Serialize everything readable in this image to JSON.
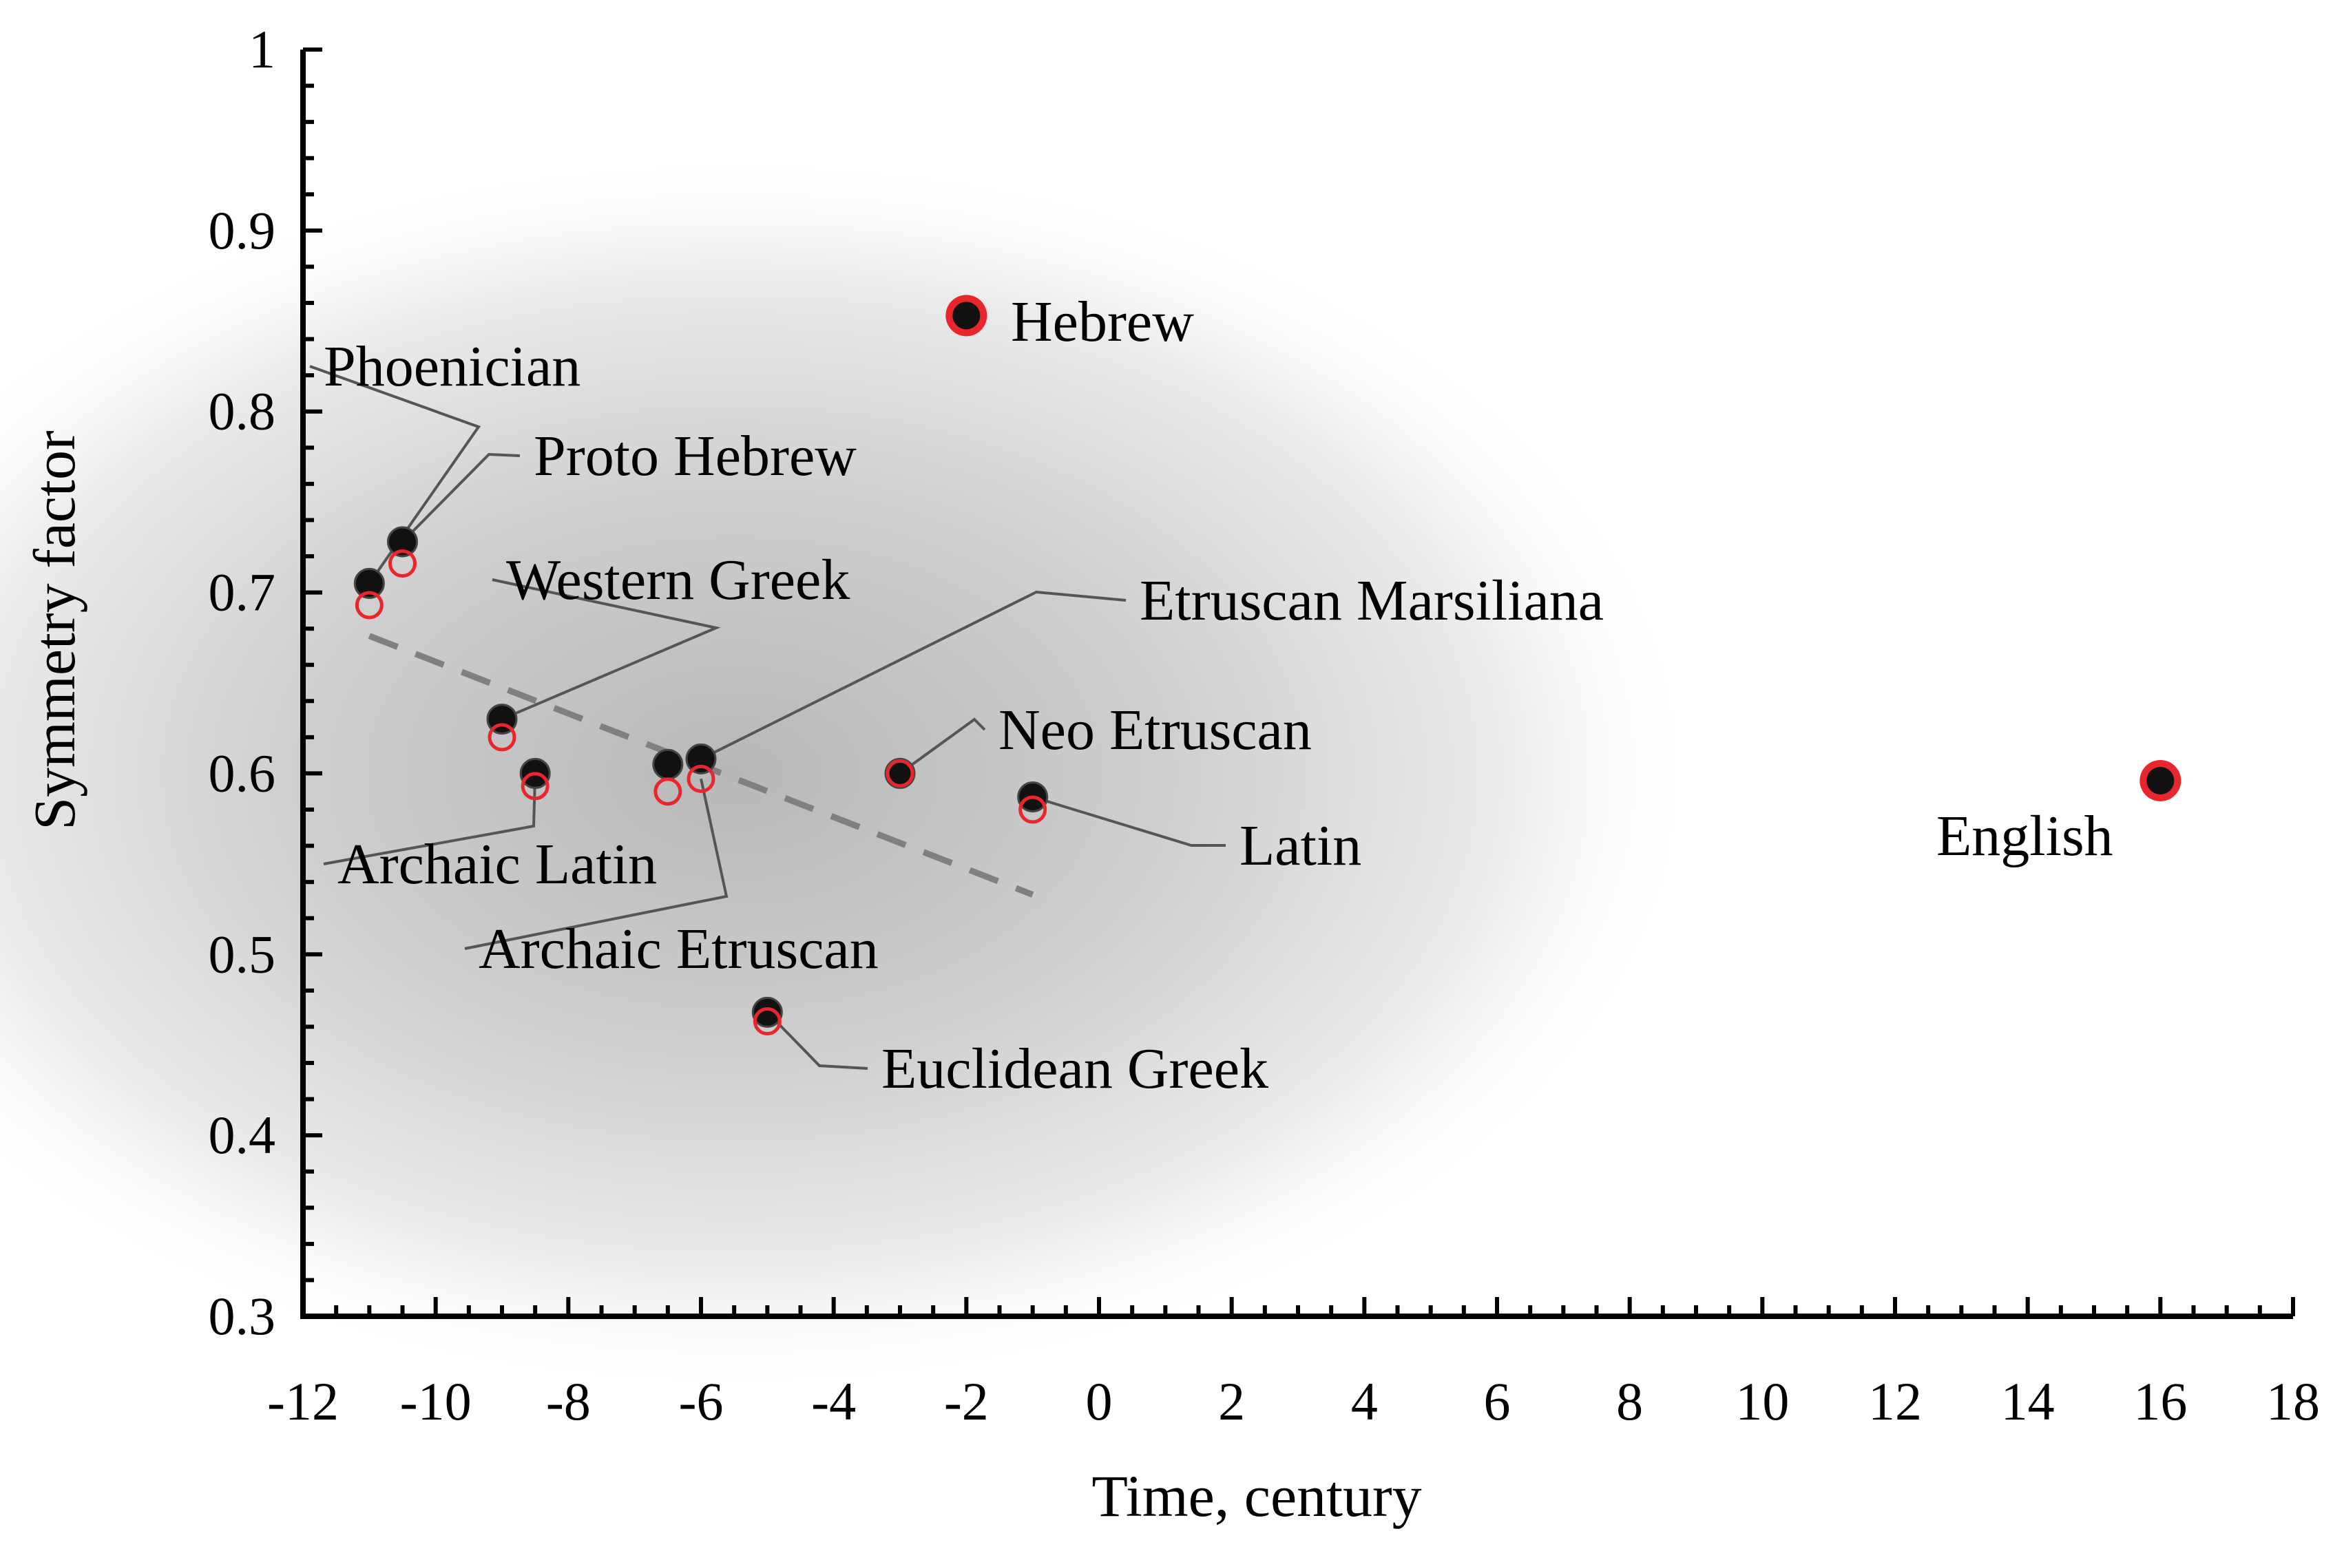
{
  "chart_data": {
    "type": "scatter",
    "title": "",
    "xlabel": "Time, century",
    "ylabel": "Symmetry factor",
    "xlim": [
      -12,
      18
    ],
    "ylim": [
      0.3,
      1.0
    ],
    "xticks": [
      -12,
      -10,
      -8,
      -6,
      -4,
      -2,
      0,
      2,
      4,
      6,
      8,
      10,
      12,
      14,
      16,
      18
    ],
    "yticks": [
      0.3,
      0.4,
      0.5,
      0.6,
      0.7,
      0.8,
      0.9,
      1.0
    ],
    "xtick_labels": [
      "-12",
      "-10",
      "-8",
      "-6",
      "-4",
      "-2",
      "0",
      "2",
      "4",
      "6",
      "8",
      "10",
      "12",
      "14",
      "16",
      "18"
    ],
    "ytick_labels": [
      "0.3",
      "0.4",
      "0.5",
      "0.6",
      "0.7",
      "0.8",
      "0.9",
      "1"
    ],
    "grid": false,
    "background": "grey density shading centred on the ancient scripts",
    "series": [
      {
        "marker": "filled black circle",
        "color": "#111111",
        "points": [
          {
            "x": -11,
            "y": 0.705
          },
          {
            "x": -10.5,
            "y": 0.728
          },
          {
            "x": -9,
            "y": 0.63
          },
          {
            "x": -8.5,
            "y": 0.6
          },
          {
            "x": -6.5,
            "y": 0.605
          },
          {
            "x": -6,
            "y": 0.608
          },
          {
            "x": -3,
            "y": 0.6
          },
          {
            "x": -1,
            "y": 0.587
          },
          {
            "x": -5,
            "y": 0.468
          },
          {
            "x": -2,
            "y": 0.853
          },
          {
            "x": 16,
            "y": 0.596
          }
        ]
      },
      {
        "marker": "open red circle",
        "color": "#e8262c",
        "points": [
          {
            "x": -11,
            "y": 0.693
          },
          {
            "x": -10.5,
            "y": 0.716
          },
          {
            "x": -9,
            "y": 0.62
          },
          {
            "x": -8.5,
            "y": 0.593
          },
          {
            "x": -6.5,
            "y": 0.59
          },
          {
            "x": -6,
            "y": 0.597
          },
          {
            "x": -3,
            "y": 0.6
          },
          {
            "x": -1,
            "y": 0.58
          },
          {
            "x": -5,
            "y": 0.463
          },
          {
            "x": -2,
            "y": 0.853
          },
          {
            "x": 16,
            "y": 0.596
          }
        ]
      }
    ],
    "trend_line": {
      "style": "dashed",
      "color": "#808080",
      "x": [
        -11,
        -1
      ],
      "y": [
        0.676,
        0.533
      ]
    },
    "annotations": [
      {
        "text": "Phoenician",
        "x": -11,
        "y": 0.705,
        "leader": true
      },
      {
        "text": "Proto Hebrew",
        "x": -10.5,
        "y": 0.728,
        "leader": true
      },
      {
        "text": "Western Greek",
        "x": -9,
        "y": 0.63,
        "leader": true
      },
      {
        "text": "Etruscan Marsiliana",
        "x": -6,
        "y": 0.608,
        "leader": true
      },
      {
        "text": "Neo Etruscan",
        "x": -3,
        "y": 0.6,
        "leader": true
      },
      {
        "text": "Latin",
        "x": -1,
        "y": 0.587,
        "leader": true
      },
      {
        "text": "Archaic Latin",
        "x": -8.5,
        "y": 0.6,
        "leader": true
      },
      {
        "text": "Archaic Etruscan",
        "x": -6,
        "y": 0.597,
        "leader": true
      },
      {
        "text": "Euclidean Greek",
        "x": -5,
        "y": 0.468,
        "leader": true
      },
      {
        "text": "Hebrew",
        "x": -2,
        "y": 0.853,
        "leader": false
      },
      {
        "text": "English",
        "x": 16,
        "y": 0.596,
        "leader": false
      }
    ]
  }
}
